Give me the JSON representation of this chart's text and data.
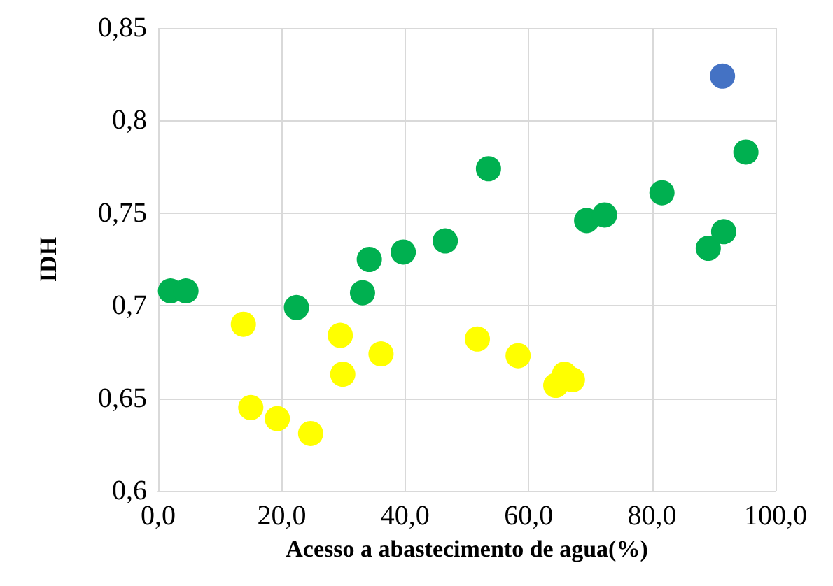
{
  "chart_data": {
    "type": "scatter",
    "xlabel": "Acesso a abastecimento de agua(%)",
    "ylabel": "IDH",
    "marker": "circle",
    "grid": true,
    "xlim": [
      0,
      100
    ],
    "xticks": [
      {
        "value": 0,
        "label": "0,0"
      },
      {
        "value": 20,
        "label": "20,0"
      },
      {
        "value": 40,
        "label": "40,0"
      },
      {
        "value": 60,
        "label": "60,0"
      },
      {
        "value": 80,
        "label": "80,0"
      },
      {
        "value": 100,
        "label": "100,0"
      }
    ],
    "ylim": [
      0.6,
      0.85
    ],
    "yticks": [
      {
        "value": 0.6,
        "label": "0,6"
      },
      {
        "value": 0.65,
        "label": "0,65"
      },
      {
        "value": 0.7,
        "label": "0,7"
      },
      {
        "value": 0.75,
        "label": "0,75"
      },
      {
        "value": 0.8,
        "label": "0,8"
      },
      {
        "value": 0.85,
        "label": "0,85"
      }
    ],
    "series": [
      {
        "color": "#00b050",
        "x": [
          2.0,
          4.5,
          22.4,
          33.1,
          34.2,
          39.7,
          46.5,
          53.5,
          69.4,
          72.3,
          81.6,
          89.1,
          91.6,
          95.2
        ],
        "values": [
          0.708,
          0.708,
          0.699,
          0.707,
          0.725,
          0.729,
          0.735,
          0.774,
          0.746,
          0.749,
          0.761,
          0.731,
          0.74,
          0.783
        ]
      },
      {
        "color": "#ffff00",
        "x": [
          13.8,
          15.0,
          19.3,
          24.7,
          29.5,
          29.9,
          36.1,
          51.7,
          58.3,
          65.8,
          64.4,
          67.1
        ],
        "values": [
          0.69,
          0.645,
          0.639,
          0.631,
          0.684,
          0.663,
          0.674,
          0.682,
          0.673,
          0.663,
          0.657,
          0.66
        ]
      },
      {
        "color": "#4472c4",
        "x": [
          91.4
        ],
        "values": [
          0.824
        ]
      }
    ]
  }
}
